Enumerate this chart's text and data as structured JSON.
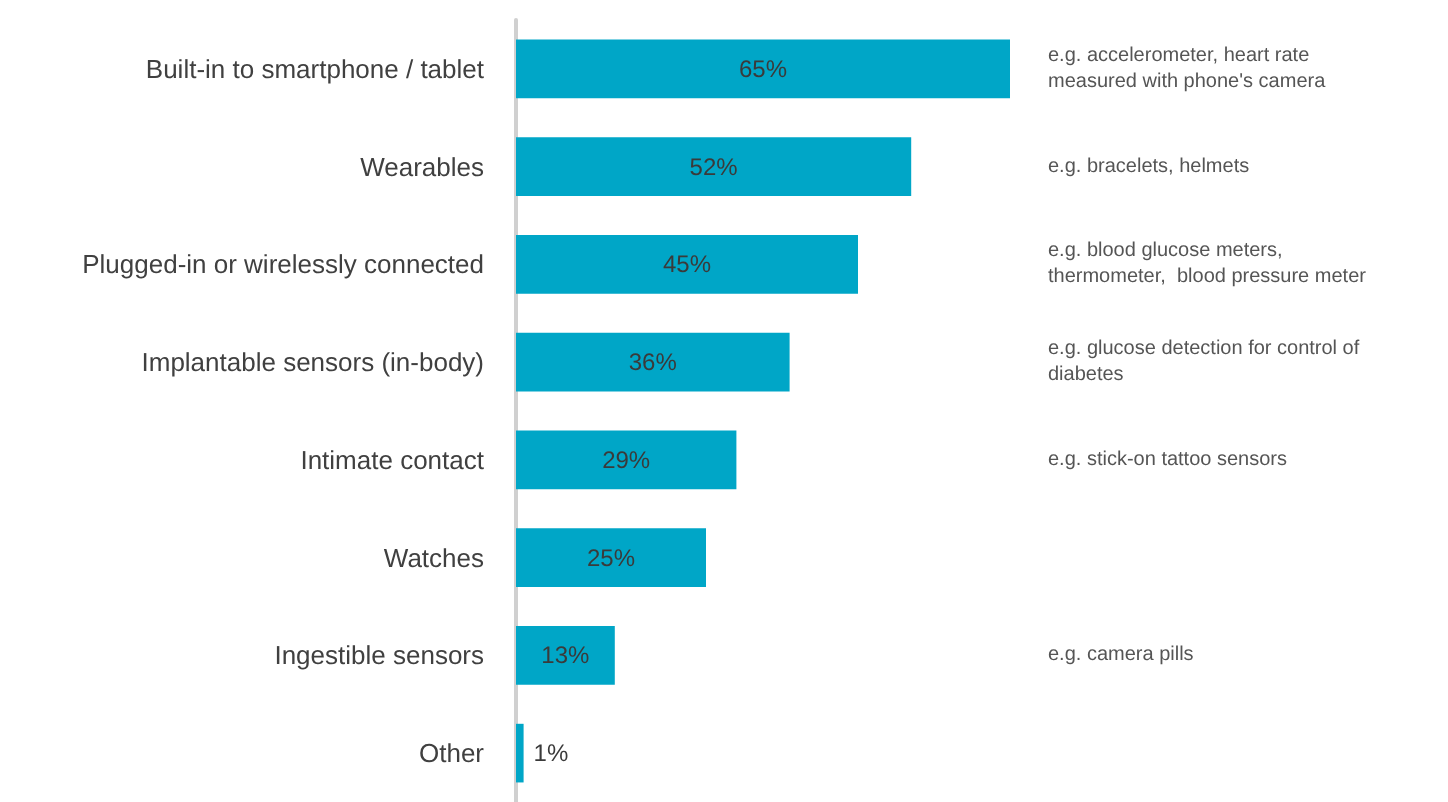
{
  "chart_data": {
    "type": "bar",
    "orientation": "horizontal",
    "categories": [
      "Built-in to smartphone / tablet",
      "Wearables",
      "Plugged-in or wirelessly connected",
      "Implantable sensors (in-body)",
      "Intimate contact",
      "Watches",
      "Ingestible sensors",
      "Other"
    ],
    "values": [
      65,
      52,
      45,
      36,
      29,
      25,
      13,
      1
    ],
    "value_labels": [
      "65%",
      "52%",
      "45%",
      "36%",
      "29%",
      "25%",
      "13%",
      "1%"
    ],
    "color": "#00a6c7",
    "grid": false,
    "annotations": [
      "e.g. accelerometer, heart rate\nmeasured with phone's camera",
      "e.g. bracelets, helmets",
      "e.g. blood glucose meters,\nthermometer,  blood pressure meter",
      "e.g. glucose detection for control of\ndiabetes",
      "e.g. stick-on tattoo sensors",
      "e.g. camera pills"
    ]
  }
}
